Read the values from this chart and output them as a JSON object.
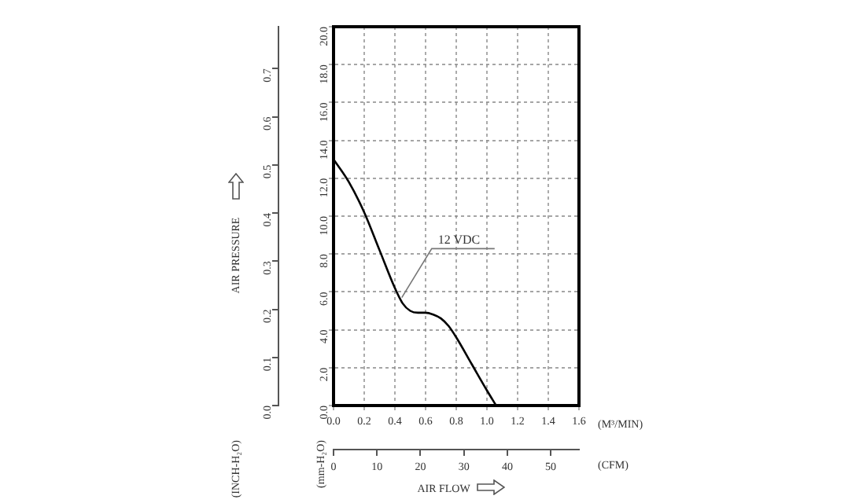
{
  "chart_data": {
    "type": "line",
    "xlabel": "(M³/MIN)",
    "x2label": "(CFM)",
    "ylabel": "(mm-H₂O)",
    "y2label": "(INCH-H₂O)",
    "annotations": [
      "AIR PRESSURE",
      "AIR FLOW"
    ],
    "xlim": [
      0,
      1.6
    ],
    "xticks": [
      {
        "value": 0,
        "label": "0.0"
      },
      {
        "value": 0.2,
        "label": "0.2"
      },
      {
        "value": 0.4,
        "label": "0.4"
      },
      {
        "value": 0.6,
        "label": "0.6"
      },
      {
        "value": 0.8,
        "label": "0.8"
      },
      {
        "value": 1,
        "label": "1.0"
      },
      {
        "value": 1.2,
        "label": "1.2"
      },
      {
        "value": 1.4,
        "label": "1.4"
      },
      {
        "value": 1.6,
        "label": "1.6"
      }
    ],
    "ylim": [
      0,
      20
    ],
    "yticks": [
      {
        "value": 0,
        "label": "0.0"
      },
      {
        "value": 2,
        "label": "2.0"
      },
      {
        "value": 4,
        "label": "4.0"
      },
      {
        "value": 6,
        "label": "6.0"
      },
      {
        "value": 8,
        "label": "8.0"
      },
      {
        "value": 10,
        "label": "10.0"
      },
      {
        "value": 12,
        "label": "12.0"
      },
      {
        "value": 14,
        "label": "14.0"
      },
      {
        "value": 16,
        "label": "16.0"
      },
      {
        "value": 18,
        "label": "18.0"
      },
      {
        "value": 20,
        "label": "20.0"
      }
    ],
    "x2lim": [
      0,
      56.5
    ],
    "x2ticks": [
      0,
      10,
      20,
      30,
      40,
      50
    ],
    "y2lim": [
      0,
      0.787
    ],
    "y2ticks": [
      {
        "value": 0,
        "label": "0.0"
      },
      0.1,
      0.2,
      0.3,
      0.4,
      0.5,
      0.6,
      0.7
    ],
    "grid": true,
    "legend": false,
    "marker": "none",
    "line_style": "solid",
    "x": [
      0,
      0.1,
      0.2,
      0.3,
      0.4,
      0.45,
      0.5,
      0.55,
      0.6,
      0.65,
      0.7,
      0.75,
      0.8,
      0.9,
      1.0,
      1.06
    ],
    "series": [
      {
        "name": "12 VDC",
        "color": "#000000",
        "values": [
          13,
          11.8,
          10.2,
          8.2,
          6.2,
          5.4,
          5.0,
          4.9,
          4.9,
          4.8,
          4.6,
          4.2,
          3.6,
          2.2,
          0.8,
          0
        ]
      }
    ]
  }
}
